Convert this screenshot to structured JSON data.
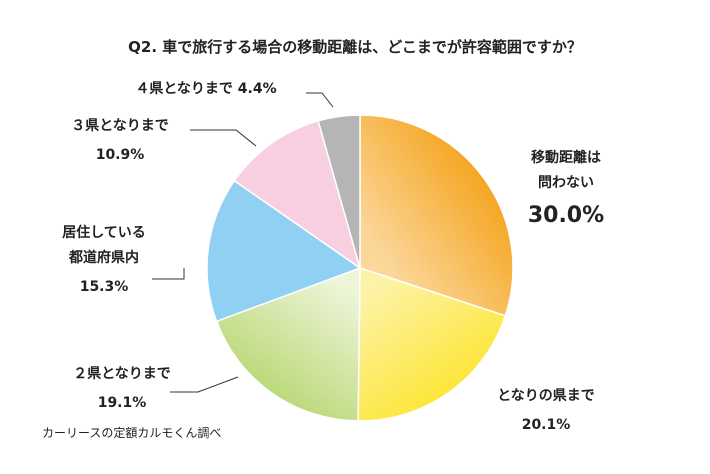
{
  "chart_data": {
    "type": "pie",
    "title": "Q2. 車で旅行する場合の移動距離は、どこまでが許容範囲ですか？",
    "source": "カーリースの定額カルモくん調べ",
    "slices": [
      {
        "label_lines": [
          "移動距離は",
          "問わない"
        ],
        "value": 30.0,
        "value_text": "30.0%",
        "colors": [
          "#f5a623",
          "#fbd79a"
        ]
      },
      {
        "label_lines": [
          "となりの県まで"
        ],
        "value": 20.1,
        "value_text": "20.1%",
        "colors": [
          "#fde63a",
          "#fdf3a8"
        ]
      },
      {
        "label_lines": [
          "２県となりまで"
        ],
        "value": 19.1,
        "value_text": "19.1%",
        "colors": [
          "#bcd97a",
          "#eef5da"
        ]
      },
      {
        "label_lines": [
          "居住している",
          "都道府県内"
        ],
        "value": 15.3,
        "value_text": "15.3%",
        "colors": [
          "#8fd0f3",
          "#8fd0f3"
        ]
      },
      {
        "label_lines": [
          "３県となりまで"
        ],
        "value": 10.9,
        "value_text": "10.9%",
        "colors": [
          "#f7cfe0",
          "#f7cfe0"
        ]
      },
      {
        "label_lines": [
          "４県となりまで"
        ],
        "value": 4.4,
        "value_text": "4.4%",
        "colors": [
          "#b5b5b5",
          "#b5b5b5"
        ]
      }
    ]
  }
}
